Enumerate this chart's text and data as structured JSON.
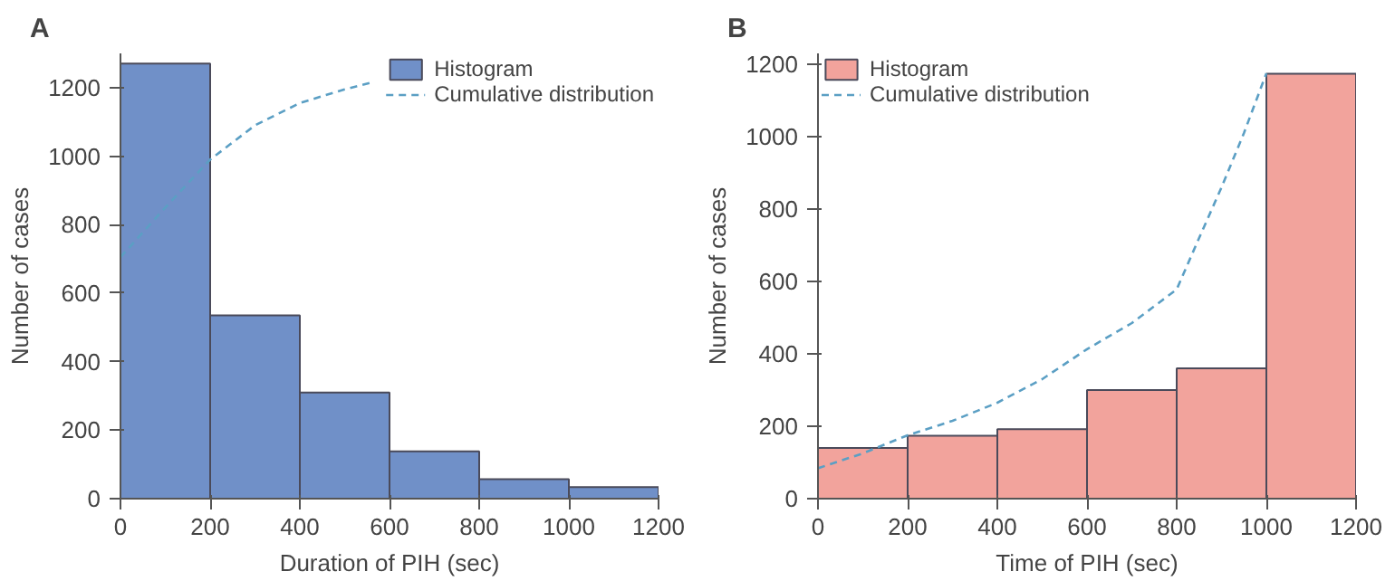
{
  "chart_data": [
    {
      "type": "histogram",
      "title": "A",
      "xlabel": "Duration of PIH (sec)",
      "ylabel": "Number of cases",
      "bins": [
        0,
        200,
        400,
        600,
        800,
        1000,
        1200
      ],
      "series": [
        {
          "name": "Histogram",
          "color": "#7090c8",
          "values": [
            1270,
            535,
            310,
            138,
            57,
            34
          ]
        },
        {
          "type": "line",
          "name": "Cumulative distribution",
          "color": "#5b9fc4",
          "line_style": "dashed",
          "x": [
            0,
            100,
            200,
            300,
            400,
            500,
            560
          ],
          "values": [
            705,
            850,
            990,
            1090,
            1155,
            1195,
            1215
          ]
        }
      ],
      "xlim": [
        0,
        1200
      ],
      "ylim": [
        0,
        1300
      ],
      "xticks": [
        0,
        200,
        400,
        600,
        800,
        1000,
        1200
      ],
      "yticks": [
        0,
        200,
        400,
        600,
        800,
        1000,
        1200
      ],
      "legend": "top right",
      "grid": false
    },
    {
      "type": "histogram",
      "title": "B",
      "xlabel": "Time of PIH (sec)",
      "ylabel": "Number of cases",
      "bins": [
        0,
        200,
        400,
        600,
        800,
        1000,
        1200
      ],
      "series": [
        {
          "name": "Histogram",
          "color": "#f2a39c",
          "values": [
            140,
            174,
            192,
            300,
            360,
            1174
          ]
        },
        {
          "type": "line",
          "name": "Cumulative distribution",
          "color": "#5b9fc4",
          "line_style": "dashed",
          "x": [
            0,
            100,
            200,
            300,
            400,
            500,
            600,
            700,
            800,
            850,
            900,
            950,
            1000
          ],
          "values": [
            84,
            125,
            175,
            215,
            265,
            330,
            413,
            485,
            578,
            720,
            860,
            1010,
            1175
          ]
        }
      ],
      "xlim": [
        0,
        1200
      ],
      "ylim": [
        0,
        1230
      ],
      "xticks": [
        0,
        200,
        400,
        600,
        800,
        1000,
        1200
      ],
      "yticks": [
        0,
        200,
        400,
        600,
        800,
        1000,
        1200
      ],
      "legend": "top left",
      "grid": false
    }
  ]
}
